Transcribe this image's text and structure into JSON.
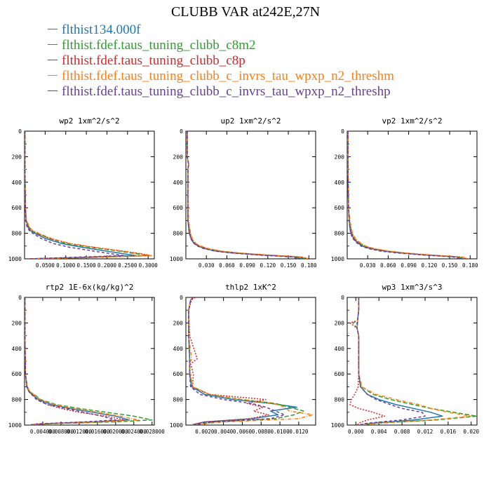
{
  "title": "CLUBB VAR at242E,27N",
  "legend": [
    {
      "label": "flthist134.000f",
      "color": "#1f77b4"
    },
    {
      "label": "flthist.fdef.taus_tuning_clubb_c8m2",
      "color": "#2ca02c"
    },
    {
      "label": "flthist.fdef.taus_tuning_clubb_c8p",
      "color": "#d62728"
    },
    {
      "label": "flthist.fdef.taus_tuning_clubb_c_invrs_tau_wpxp_n2_threshm",
      "color": "#ff7f0e"
    },
    {
      "label": "flthist.fdef.taus_tuning_clubb_c_invrs_tau_wpxp_n2_threshp",
      "color": "#6a3d9a"
    }
  ],
  "chart_data": [
    {
      "type": "line",
      "title": "wp2  1xm^2/s^2",
      "ylim": [
        1000,
        0
      ],
      "yticks": [
        "0",
        "200",
        "400",
        "600",
        "800",
        "1000"
      ],
      "xlim": [
        0,
        0.315
      ],
      "xticks": [
        0.05,
        0.1,
        0.15,
        0.2,
        0.25,
        0.3
      ],
      "xtick_labels": [
        "0.0500",
        "0.1000",
        "0.1500",
        "0.2000",
        "0.2500",
        "0.3000"
      ],
      "y": [
        0,
        300,
        600,
        700,
        750,
        780,
        800,
        840,
        880,
        910,
        940,
        960,
        975,
        990,
        1000
      ],
      "series": [
        {
          "x": [
            0.001,
            0.001,
            0.002,
            0.004,
            0.008,
            0.015,
            0.025,
            0.05,
            0.09,
            0.14,
            0.2,
            0.24,
            0.27,
            0.12,
            0.01
          ]
        },
        {
          "x": [
            0.001,
            0.001,
            0.002,
            0.004,
            0.01,
            0.018,
            0.03,
            0.06,
            0.1,
            0.16,
            0.23,
            0.27,
            0.3,
            0.15,
            0.01
          ]
        },
        {
          "x": [
            0.001,
            0.001,
            0.002,
            0.004,
            0.01,
            0.018,
            0.03,
            0.06,
            0.11,
            0.17,
            0.24,
            0.28,
            0.305,
            0.14,
            0.01
          ]
        },
        {
          "x": [
            0.001,
            0.001,
            0.002,
            0.005,
            0.012,
            0.02,
            0.035,
            0.065,
            0.11,
            0.17,
            0.24,
            0.285,
            0.31,
            0.16,
            0.01
          ]
        },
        {
          "x": [
            0.001,
            0.001,
            0.002,
            0.003,
            0.006,
            0.012,
            0.02,
            0.04,
            0.07,
            0.11,
            0.17,
            0.21,
            0.24,
            0.1,
            0.01
          ]
        }
      ]
    },
    {
      "type": "line",
      "title": "up2  1xm^2/s^2",
      "ylim": [
        1000,
        0
      ],
      "yticks": [
        "0",
        "200",
        "400",
        "600",
        "800",
        "1000"
      ],
      "xlim": [
        0,
        0.19
      ],
      "xticks": [
        0.03,
        0.06,
        0.09,
        0.12,
        0.15,
        0.18
      ],
      "xtick_labels": [
        "0.030",
        "0.060",
        "0.090",
        "0.120",
        "0.150",
        "0.180"
      ],
      "y": [
        0,
        200,
        260,
        300,
        500,
        700,
        800,
        850,
        880,
        900,
        920,
        940,
        955,
        970,
        985,
        1000
      ],
      "series": [
        {
          "x": [
            0.002,
            0.002,
            0.004,
            0.003,
            0.003,
            0.003,
            0.005,
            0.008,
            0.012,
            0.018,
            0.028,
            0.045,
            0.07,
            0.11,
            0.16,
            0.17
          ]
        },
        {
          "x": [
            0.002,
            0.002,
            0.004,
            0.003,
            0.003,
            0.003,
            0.006,
            0.009,
            0.014,
            0.02,
            0.03,
            0.05,
            0.075,
            0.115,
            0.165,
            0.175
          ]
        },
        {
          "x": [
            0.002,
            0.002,
            0.004,
            0.003,
            0.003,
            0.003,
            0.006,
            0.009,
            0.014,
            0.02,
            0.031,
            0.05,
            0.078,
            0.118,
            0.168,
            0.178
          ]
        },
        {
          "x": [
            0.002,
            0.002,
            0.004,
            0.003,
            0.003,
            0.004,
            0.007,
            0.01,
            0.015,
            0.022,
            0.033,
            0.053,
            0.08,
            0.12,
            0.17,
            0.18
          ]
        },
        {
          "x": [
            0.002,
            0.002,
            0.004,
            0.003,
            0.003,
            0.003,
            0.005,
            0.008,
            0.012,
            0.017,
            0.026,
            0.043,
            0.068,
            0.105,
            0.155,
            0.165
          ]
        }
      ]
    },
    {
      "type": "line",
      "title": "vp2  1xm^2/s^2",
      "ylim": [
        1000,
        0
      ],
      "yticks": [
        "0",
        "200",
        "400",
        "600",
        "800",
        "1000"
      ],
      "xlim": [
        0,
        0.19
      ],
      "xticks": [
        0.03,
        0.06,
        0.09,
        0.12,
        0.15,
        0.18
      ],
      "xtick_labels": [
        "0.030",
        "0.060",
        "0.090",
        "0.120",
        "0.150",
        "0.180"
      ],
      "y": [
        0,
        300,
        600,
        700,
        760,
        800,
        840,
        870,
        900,
        920,
        940,
        955,
        970,
        985,
        1000
      ],
      "series": [
        {
          "x": [
            0.001,
            0.001,
            0.002,
            0.003,
            0.004,
            0.006,
            0.009,
            0.014,
            0.022,
            0.034,
            0.055,
            0.08,
            0.115,
            0.16,
            0.17
          ]
        },
        {
          "x": [
            0.001,
            0.001,
            0.002,
            0.003,
            0.005,
            0.007,
            0.01,
            0.016,
            0.025,
            0.037,
            0.058,
            0.083,
            0.118,
            0.163,
            0.172
          ]
        },
        {
          "x": [
            0.001,
            0.001,
            0.002,
            0.003,
            0.005,
            0.007,
            0.01,
            0.016,
            0.025,
            0.038,
            0.06,
            0.085,
            0.12,
            0.165,
            0.175
          ]
        },
        {
          "x": [
            0.001,
            0.001,
            0.002,
            0.004,
            0.006,
            0.008,
            0.012,
            0.018,
            0.027,
            0.04,
            0.062,
            0.088,
            0.122,
            0.168,
            0.178
          ]
        },
        {
          "x": [
            0.001,
            0.001,
            0.002,
            0.003,
            0.004,
            0.005,
            0.008,
            0.013,
            0.02,
            0.031,
            0.05,
            0.075,
            0.11,
            0.155,
            0.165
          ]
        }
      ]
    },
    {
      "type": "line",
      "title": "rtp2  1E-6x(kg/kg)^2",
      "ylim": [
        1000,
        0
      ],
      "yticks": [
        "0",
        "200",
        "400",
        "600",
        "800",
        "1000"
      ],
      "xlim": [
        0,
        0.0285
      ],
      "xticks": [
        0.004,
        0.008,
        0.012,
        0.016,
        0.02,
        0.024,
        0.028
      ],
      "xtick_labels": [
        "0.004000",
        "0.008000",
        "0.012000",
        "0.016000",
        "0.020000",
        "0.024000",
        "0.028000"
      ],
      "y": [
        0,
        300,
        600,
        700,
        740,
        770,
        800,
        840,
        870,
        900,
        930,
        960,
        975,
        990,
        1000
      ],
      "series": [
        {
          "x": [
            0.0001,
            0.0001,
            0.0002,
            0.0005,
            0.001,
            0.002,
            0.003,
            0.006,
            0.01,
            0.015,
            0.02,
            0.023,
            0.015,
            0.004,
            0.001
          ]
        },
        {
          "x": [
            0.0001,
            0.0001,
            0.0002,
            0.0006,
            0.0012,
            0.0025,
            0.0035,
            0.007,
            0.012,
            0.018,
            0.024,
            0.028,
            0.02,
            0.005,
            0.001
          ]
        },
        {
          "x": [
            0.0001,
            0.0001,
            0.0002,
            0.0005,
            0.001,
            0.002,
            0.003,
            0.005,
            0.008,
            0.012,
            0.018,
            0.022,
            0.016,
            0.003,
            0.001
          ]
        },
        {
          "x": [
            0.0001,
            0.0001,
            0.0002,
            0.0006,
            0.0012,
            0.0024,
            0.0034,
            0.0065,
            0.011,
            0.016,
            0.021,
            0.025,
            0.017,
            0.004,
            0.001
          ]
        },
        {
          "x": [
            0.0001,
            0.0001,
            0.0002,
            0.0005,
            0.001,
            0.0018,
            0.0026,
            0.005,
            0.009,
            0.013,
            0.017,
            0.02,
            0.013,
            0.003,
            0.001
          ]
        }
      ]
    },
    {
      "type": "line",
      "title": "thlp2  1xK^2",
      "ylim": [
        1000,
        0
      ],
      "yticks": [
        "0",
        "200",
        "400",
        "600",
        "800",
        "1000"
      ],
      "xlim": [
        0,
        0.0138
      ],
      "xticks": [
        0.002,
        0.004,
        0.006,
        0.008,
        0.01,
        0.012
      ],
      "xtick_labels": [
        "0.0020",
        "0.0040",
        "0.0060",
        "0.0080",
        "0.0100",
        "0.0120"
      ],
      "y": [
        0,
        20,
        100,
        300,
        480,
        520,
        600,
        700,
        760,
        800,
        830,
        860,
        890,
        920,
        950,
        975,
        1000
      ],
      "series": [
        {
          "x": [
            0.0008,
            0.0005,
            0.0003,
            0.0003,
            0.0004,
            0.0004,
            0.0004,
            0.0006,
            0.002,
            0.005,
            0.009,
            0.0118,
            0.009,
            0.0098,
            0.007,
            0.002,
            0.0005
          ]
        },
        {
          "x": [
            0.0008,
            0.0005,
            0.0003,
            0.0003,
            0.0004,
            0.0004,
            0.0004,
            0.0007,
            0.0025,
            0.006,
            0.0095,
            0.011,
            0.0125,
            0.0115,
            0.0095,
            0.003,
            0.0005
          ]
        },
        {
          "x": [
            0.001,
            0.0006,
            0.0003,
            0.0004,
            0.0012,
            0.0005,
            0.0008,
            0.0007,
            0.0025,
            0.0085,
            0.0065,
            0.0082,
            0.0072,
            0.0088,
            0.0068,
            0.002,
            0.0005
          ]
        },
        {
          "x": [
            0.0008,
            0.0005,
            0.0003,
            0.0003,
            0.0006,
            0.0004,
            0.0005,
            0.0007,
            0.0025,
            0.006,
            0.0093,
            0.0105,
            0.011,
            0.0135,
            0.012,
            0.004,
            0.0005
          ]
        },
        {
          "x": [
            0.0008,
            0.0005,
            0.0003,
            0.0003,
            0.0004,
            0.0004,
            0.0004,
            0.0005,
            0.0015,
            0.004,
            0.007,
            0.0085,
            0.0095,
            0.0105,
            0.009,
            0.003,
            0.0005
          ]
        }
      ]
    },
    {
      "type": "line",
      "title": "wp3  1xm^3/s^3",
      "ylim": [
        1000,
        0
      ],
      "yticks": [
        "0",
        "200",
        "400",
        "600",
        "800",
        "1000"
      ],
      "xlim": [
        -0.0015,
        0.021
      ],
      "xticks": [
        0.0,
        0.004,
        0.008,
        0.012,
        0.016,
        0.02
      ],
      "xtick_labels": [
        "0.000",
        "0.004",
        "0.008",
        "0.012",
        "0.016",
        "0.020"
      ],
      "y": [
        0,
        100,
        180,
        200,
        240,
        300,
        400,
        600,
        700,
        760,
        800,
        840,
        870,
        900,
        930,
        960,
        985,
        1000
      ],
      "series": [
        {
          "x": [
            0.0005,
            0.0005,
            0.0003,
            0.0003,
            0.0002,
            0.0005,
            0.0005,
            0.0005,
            0.0008,
            0.002,
            0.004,
            0.007,
            0.01,
            0.013,
            0.015,
            0.01,
            0.003,
            0.0005
          ]
        },
        {
          "x": [
            0.0005,
            0.0005,
            0.0003,
            -0.0005,
            0.0002,
            0.0005,
            0.0005,
            0.0005,
            0.001,
            0.003,
            0.006,
            0.01,
            0.013,
            0.017,
            0.021,
            0.014,
            0.004,
            0.0005
          ]
        },
        {
          "x": [
            0.0005,
            0.0005,
            0.0003,
            -0.001,
            0.0002,
            0.0005,
            0.0005,
            0.0005,
            0.0004,
            -0.0002,
            -0.0008,
            -0.001,
            0.0005,
            0.003,
            0.005,
            0.002,
            0.0005,
            0.0003
          ]
        },
        {
          "x": [
            0.0005,
            0.0005,
            0.0003,
            0.0003,
            0.0002,
            0.0005,
            0.0005,
            0.0005,
            0.001,
            0.0035,
            0.007,
            0.011,
            0.013,
            0.016,
            0.02,
            0.013,
            0.004,
            0.0005
          ]
        },
        {
          "x": [
            0.0005,
            0.0005,
            0.0003,
            0.0002,
            0.0002,
            0.0005,
            0.0005,
            0.0005,
            0.0008,
            0.002,
            0.0035,
            0.006,
            0.008,
            0.0115,
            0.012,
            0.008,
            0.002,
            0.0005
          ]
        }
      ]
    }
  ]
}
